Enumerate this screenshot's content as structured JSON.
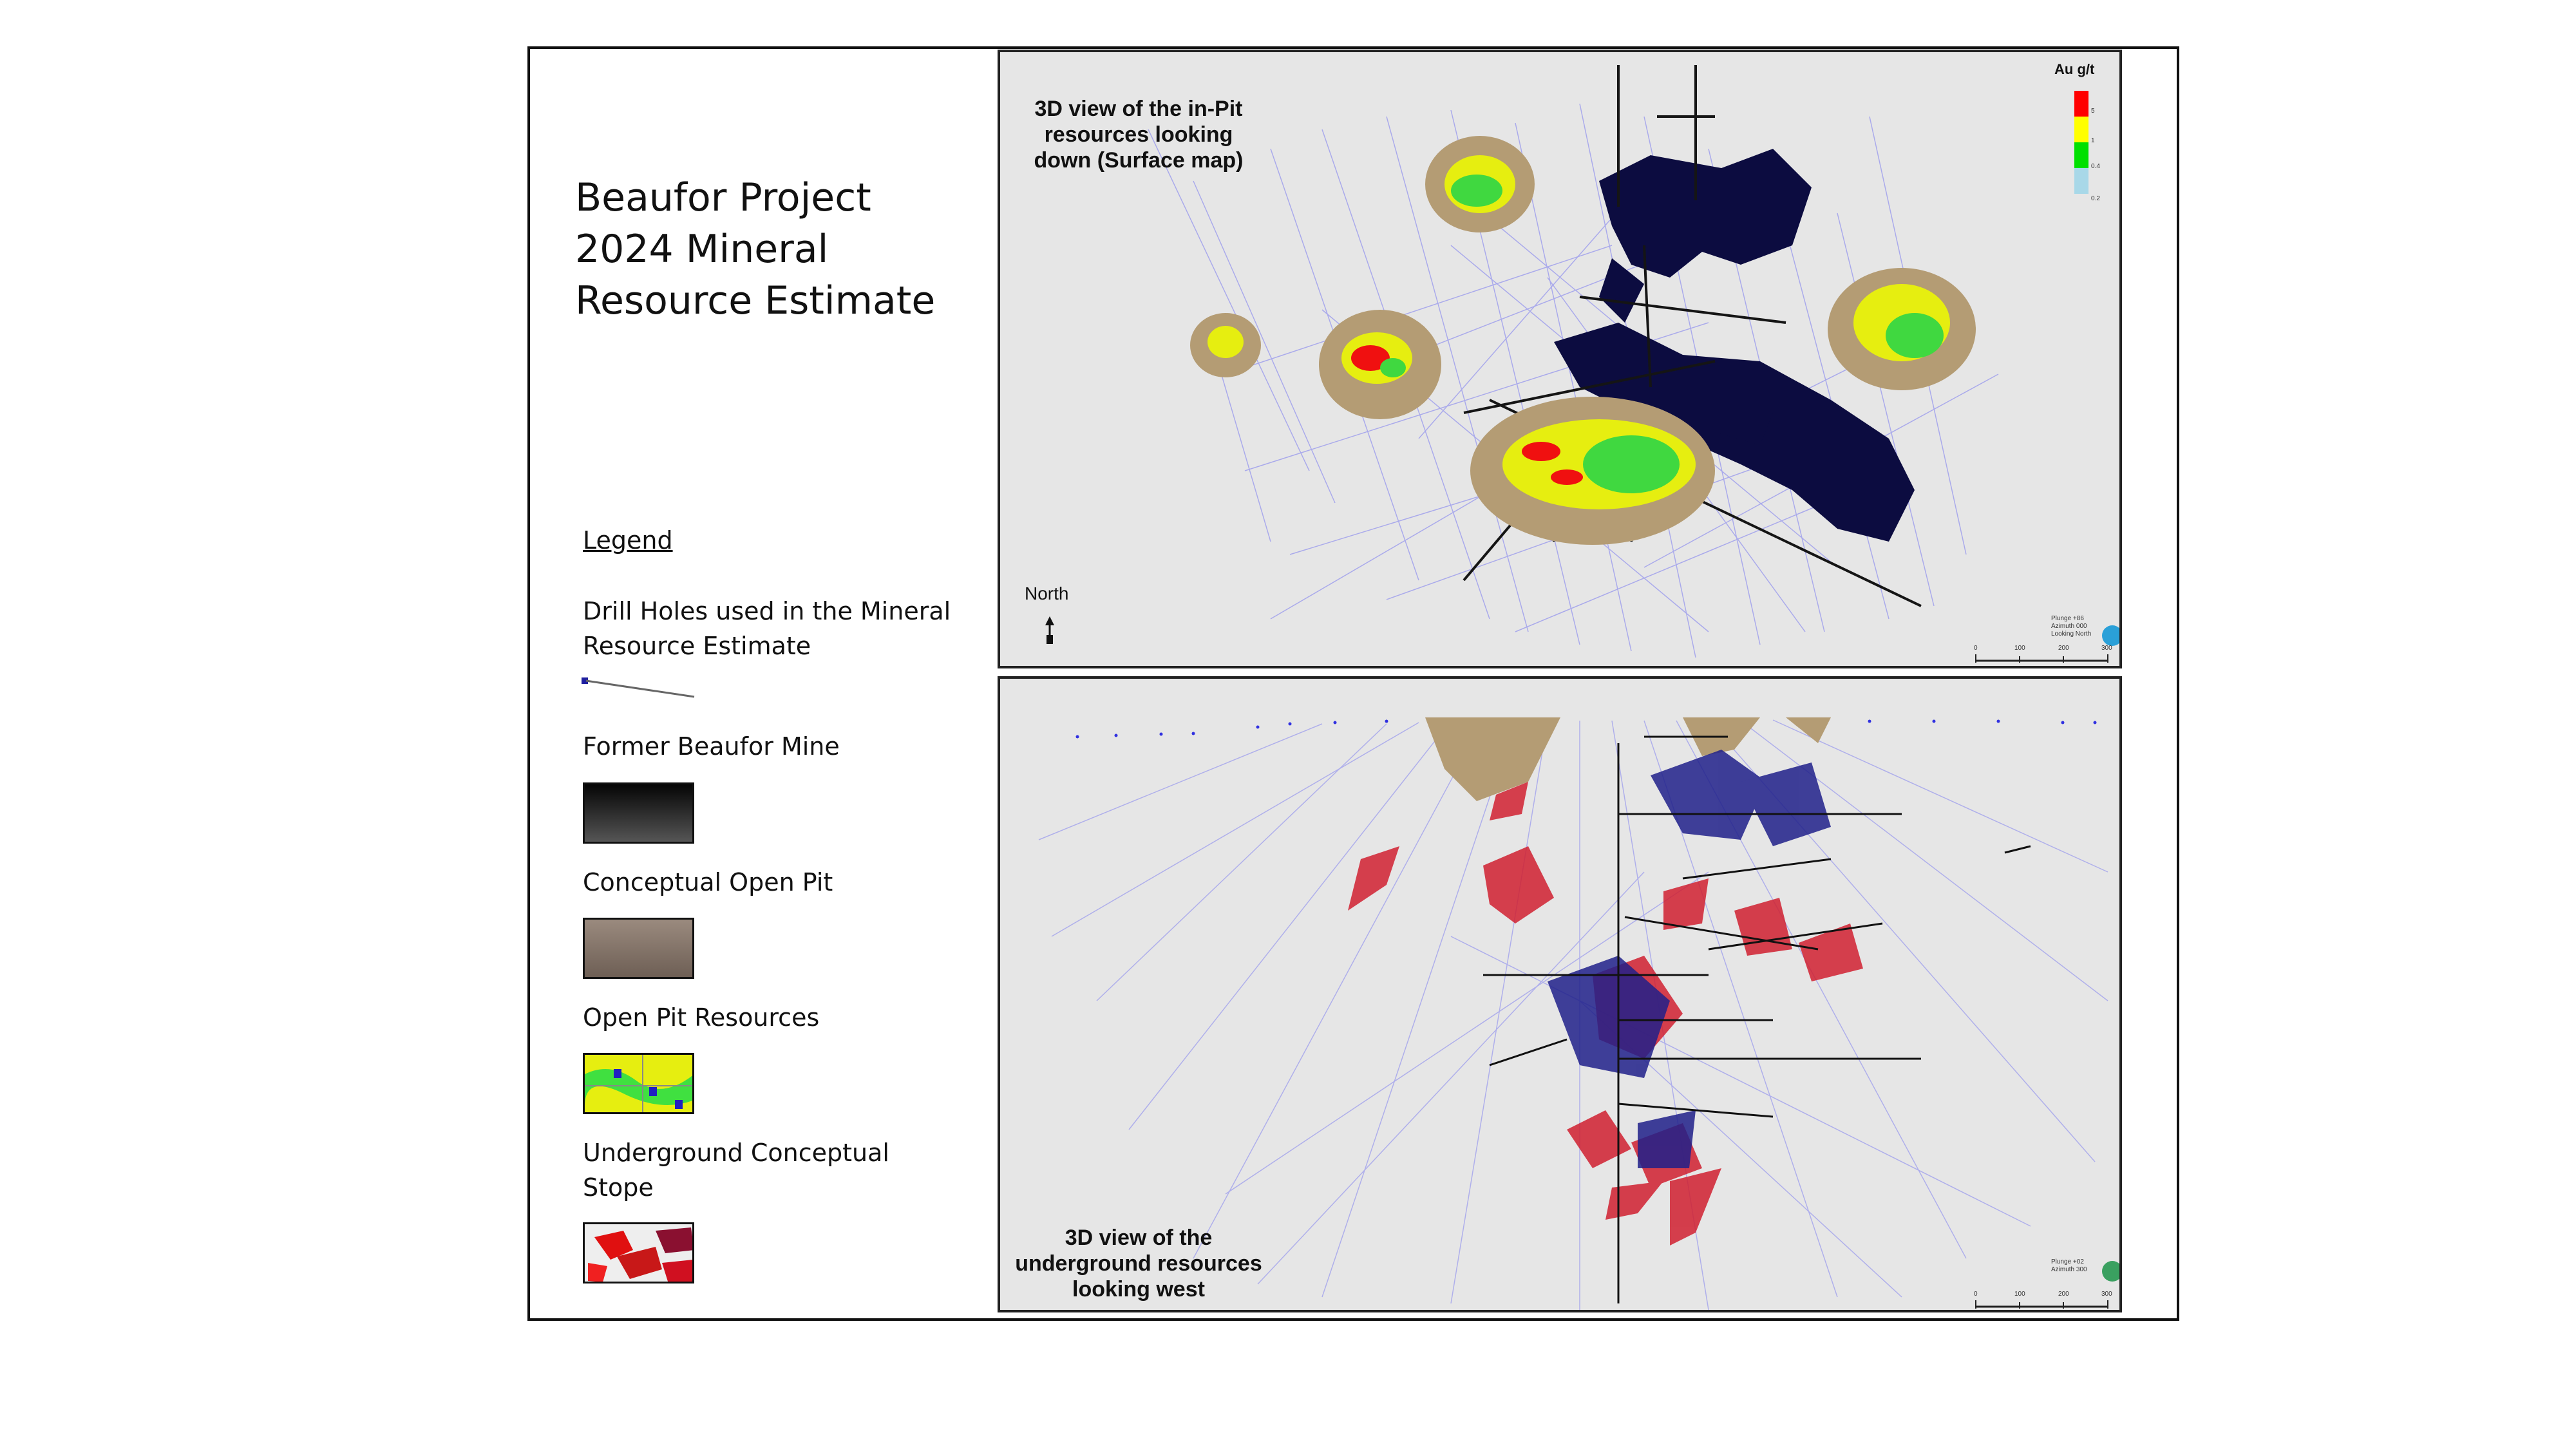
{
  "title": {
    "line1": "Beaufor  Project",
    "line2": "2024 Mineral",
    "line3": "Resource Estimate"
  },
  "legend": {
    "heading": "Legend",
    "drill_holes_line1": "Drill Holes used in the Mineral",
    "drill_holes_line2": "Resource Estimate",
    "former_mine": "Former Beaufor Mine",
    "open_pit": "Conceptual Open Pit",
    "open_pit_resources": "Open Pit Resources",
    "ug_stope_line1": "Underground Conceptual",
    "ug_stope_line2": "Stope"
  },
  "top_panel": {
    "title_line1": "3D view of the in-Pit",
    "title_line2": "resources looking",
    "title_line3": "down (Surface map)",
    "north_label": "North",
    "scale_title": "Au g/t",
    "scale_values": [
      "5",
      "1",
      "0.4",
      "0.2"
    ],
    "scale_colors": [
      "#ff0000",
      "#ffff00",
      "#00e000",
      "#a8d8e8"
    ],
    "orientation_lines": [
      "Plunge +86",
      "Azimuth 000",
      "Looking North"
    ],
    "scalebar_ticks": [
      "0",
      "100",
      "200",
      "300"
    ]
  },
  "bottom_panel": {
    "title_line1": "3D view of the",
    "title_line2": "underground resources",
    "title_line3": "looking west",
    "orientation_lines": [
      "Plunge +02",
      "Azimuth 300"
    ],
    "scalebar_ticks": [
      "0",
      "100",
      "200",
      "300"
    ]
  },
  "colors": {
    "drill_hole": "#5050e0",
    "mine": "#0a0a3a",
    "pit": "#b09a78",
    "stope": "#e02020"
  }
}
